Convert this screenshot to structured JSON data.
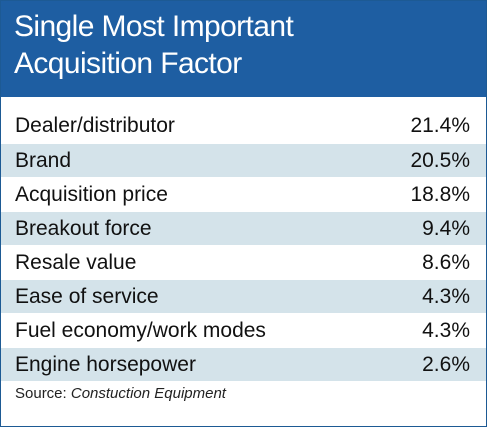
{
  "chart_data": {
    "type": "table",
    "title": "Single Most Important Acquisition Factor",
    "title_lines": [
      "Single Most Important",
      "Acquisition Factor"
    ],
    "rows": [
      {
        "label": "Dealer/distributor",
        "value": 21.4,
        "display": "21.4%"
      },
      {
        "label": "Brand",
        "value": 20.5,
        "display": "20.5%"
      },
      {
        "label": "Acquisition price",
        "value": 18.8,
        "display": "18.8%"
      },
      {
        "label": "Breakout force",
        "value": 9.4,
        "display": "9.4%"
      },
      {
        "label": "Resale value",
        "value": 8.6,
        "display": "8.6%"
      },
      {
        "label": "Ease of service",
        "value": 4.3,
        "display": "4.3%"
      },
      {
        "label": "Fuel economy/work modes",
        "value": 4.3,
        "display": "4.3%"
      },
      {
        "label": "Engine horsepower",
        "value": 2.6,
        "display": "2.6%"
      }
    ],
    "source_prefix": "Source:",
    "source_name": "Constuction Equipment"
  },
  "colors": {
    "header_background": "#1e5ea2",
    "header_text": "#ffffff",
    "alternate_row": "#d4e3ea",
    "border": "#1d5a94"
  }
}
